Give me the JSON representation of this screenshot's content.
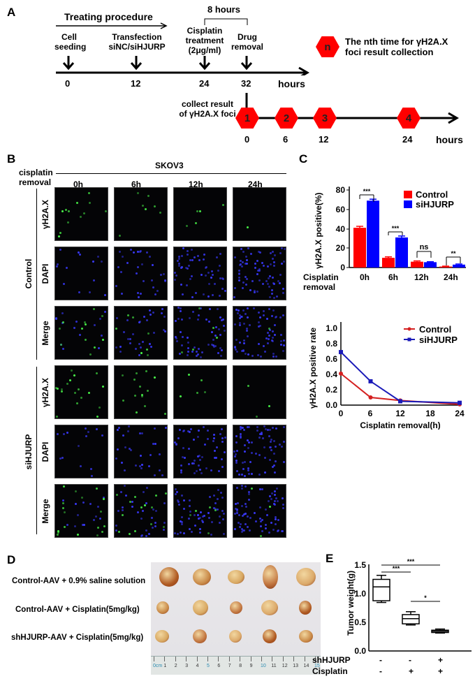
{
  "panelA": {
    "label": "A",
    "procedure_title": "Treating procedure",
    "duration_label": "8 hours",
    "events": [
      {
        "line1": "Cell",
        "line2": "seeding",
        "line3": "",
        "time": "0"
      },
      {
        "line1": "Transfection",
        "line2": "siNC/siHJURP",
        "line3": "",
        "time": "12"
      },
      {
        "line1": "Cisplatin",
        "line2": "treatment",
        "line3": "(2μg/ml)",
        "time": "24"
      },
      {
        "line1": "Drug",
        "line2": "removal",
        "line3": "",
        "time": "32"
      }
    ],
    "axis_unit": "hours",
    "collect_line1": "collect result",
    "collect_line2": "of γH2A.X foci",
    "collection_points": [
      {
        "n": "1",
        "time": "0"
      },
      {
        "n": "2",
        "time": "6"
      },
      {
        "n": "3",
        "time": "12"
      },
      {
        "n": "4",
        "time": "24"
      }
    ],
    "collection_axis_unit": "hours",
    "legend_symbol": "n",
    "legend_line1": "The nth time for γH2A.X",
    "legend_line2": "foci result collection",
    "hex_color": "#ff0000"
  },
  "panelB": {
    "label": "B",
    "cell_line": "SKOV3",
    "row_header_line1": "cisplatin",
    "row_header_line2": "removal",
    "columns": [
      "0h",
      "6h",
      "12h",
      "24h"
    ],
    "groups": [
      {
        "name": "Control",
        "rows": [
          "γH2A.X",
          "DAPI",
          "Merge"
        ]
      },
      {
        "name": "siHJURP",
        "rows": [
          "γH2A.X",
          "DAPI",
          "Merge"
        ]
      }
    ]
  },
  "panelC": {
    "label": "C"
  },
  "panelD": {
    "label": "D",
    "groups": [
      "Control-AAV + 0.9% saline solution",
      "Control-AAV + Cisplatin(5mg/kg)",
      "shHJURP-AAV + Cisplatin(5mg/kg)"
    ],
    "ruler_ticks": [
      "0cm",
      "1",
      "2",
      "3",
      "4",
      "5",
      "6",
      "7",
      "8",
      "9",
      "10",
      "11",
      "12",
      "13",
      "14",
      "15"
    ]
  },
  "panelE": {
    "label": "E"
  },
  "chart_data": [
    {
      "id": "C-bar",
      "type": "bar",
      "title": "",
      "xlabel": "Cisplatin removal",
      "ylabel": "γH2A.X positive(%)",
      "categories": [
        "0h",
        "6h",
        "12h",
        "24h"
      ],
      "series": [
        {
          "name": "Control",
          "color": "#ff0000",
          "values": [
            41,
            10,
            6,
            1
          ],
          "errors": [
            1.5,
            1,
            0.8,
            0.4
          ]
        },
        {
          "name": "siHJURP",
          "color": "#0000ff",
          "values": [
            69,
            31,
            5.5,
            3
          ],
          "errors": [
            1.5,
            1.5,
            0.5,
            0.6
          ]
        }
      ],
      "significance": [
        "***",
        "***",
        "ns",
        "**"
      ],
      "yticks": [
        "0",
        "20",
        "40",
        "60",
        "80"
      ],
      "ylim": [
        0,
        80
      ],
      "legend_position": "upper right"
    },
    {
      "id": "C-line",
      "type": "line",
      "title": "",
      "xlabel": "Cisplatin removal(h)",
      "ylabel": "γH2A.X positive rate",
      "x": [
        0,
        6,
        12,
        24
      ],
      "series": [
        {
          "name": "Control",
          "color": "#d42020",
          "marker": "circle",
          "values": [
            0.41,
            0.1,
            0.06,
            0.01
          ]
        },
        {
          "name": "siHJURP",
          "color": "#1a1ab8",
          "marker": "square",
          "values": [
            0.69,
            0.31,
            0.05,
            0.03
          ]
        }
      ],
      "xticks": [
        "0",
        "6",
        "12",
        "18",
        "24"
      ],
      "yticks": [
        "0.0",
        "0.2",
        "0.4",
        "0.6",
        "0.8",
        "1.0"
      ],
      "xlim": [
        0,
        24
      ],
      "ylim": [
        0,
        1.0
      ],
      "legend_position": "upper right"
    },
    {
      "id": "E-box",
      "type": "box",
      "title": "",
      "xlabel": "",
      "ylabel": "Tumor weight(g)",
      "categories": [
        {
          "shHJURP": "-",
          "Cisplatin": "-"
        },
        {
          "shHJURP": "-",
          "Cisplatin": "+"
        },
        {
          "shHJURP": "+",
          "Cisplatin": "+"
        }
      ],
      "row_labels": [
        "shHJURP",
        "Cisplatin"
      ],
      "boxes": [
        {
          "min": 0.84,
          "q1": 0.87,
          "median": 1.11,
          "q3": 1.24,
          "max": 1.31
        },
        {
          "min": 0.45,
          "q1": 0.47,
          "median": 0.56,
          "q3": 0.63,
          "max": 0.68
        },
        {
          "min": 0.31,
          "q1": 0.32,
          "median": 0.34,
          "q3": 0.36,
          "max": 0.38
        }
      ],
      "comparisons": [
        {
          "from": 1,
          "to": 3,
          "label": "***"
        },
        {
          "from": 1,
          "to": 2,
          "label": "***"
        },
        {
          "from": 2,
          "to": 3,
          "label": "*"
        }
      ],
      "yticks": [
        "0.0",
        "0.5",
        "1.0",
        "1.5"
      ],
      "ylim": [
        0,
        1.5
      ]
    }
  ]
}
